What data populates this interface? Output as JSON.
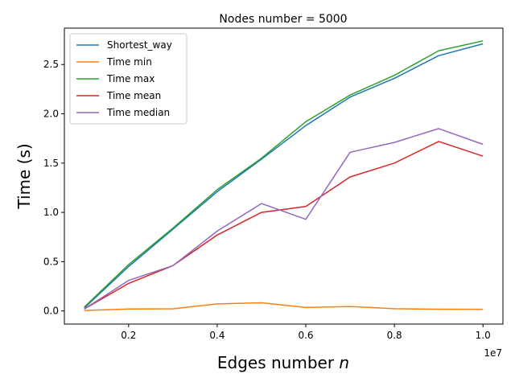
{
  "chart_data": {
    "type": "line",
    "title": "Nodes number = 5000",
    "xlabel": "Edges number",
    "xlabel_var": "n",
    "ylabel": "Time (s)",
    "x_offset_text": "1e7",
    "x_scale": 10000000,
    "x": [
      1000000,
      2000000,
      3000000,
      4000000,
      5000000,
      6000000,
      7000000,
      8000000,
      9000000,
      10000000
    ],
    "xlim": [
      550000,
      10450000
    ],
    "ylim": [
      -0.133,
      2.869
    ],
    "x_ticks": [
      2000000,
      4000000,
      6000000,
      8000000,
      10000000
    ],
    "x_tick_labels": [
      "0.2",
      "0.4",
      "0.6",
      "0.8",
      "1.0"
    ],
    "y_ticks": [
      0.0,
      0.5,
      1.0,
      1.5,
      2.0,
      2.5
    ],
    "y_tick_labels": [
      "0.0",
      "0.5",
      "1.0",
      "1.5",
      "2.0",
      "2.5"
    ],
    "grid": false,
    "legend_position": "top-left",
    "series": [
      {
        "name": "Shortest_way",
        "color": "#1f77b4",
        "values": [
          0.03,
          0.45,
          0.83,
          1.21,
          1.54,
          1.88,
          2.17,
          2.36,
          2.59,
          2.71
        ]
      },
      {
        "name": "Time min",
        "color": "#ff7f0e",
        "values": [
          0.005,
          0.02,
          0.022,
          0.072,
          0.083,
          0.035,
          0.046,
          0.023,
          0.018,
          0.017
        ]
      },
      {
        "name": "Time max",
        "color": "#2ca02c",
        "values": [
          0.04,
          0.47,
          0.84,
          1.23,
          1.55,
          1.92,
          2.19,
          2.39,
          2.64,
          2.74
        ]
      },
      {
        "name": "Time mean",
        "color": "#d62728",
        "values": [
          0.02,
          0.28,
          0.46,
          0.77,
          1.0,
          1.06,
          1.36,
          1.5,
          1.72,
          1.57
        ]
      },
      {
        "name": "Time median",
        "color": "#9467bd",
        "values": [
          0.02,
          0.31,
          0.46,
          0.81,
          1.09,
          0.93,
          1.61,
          1.71,
          1.85,
          1.69
        ]
      }
    ]
  }
}
